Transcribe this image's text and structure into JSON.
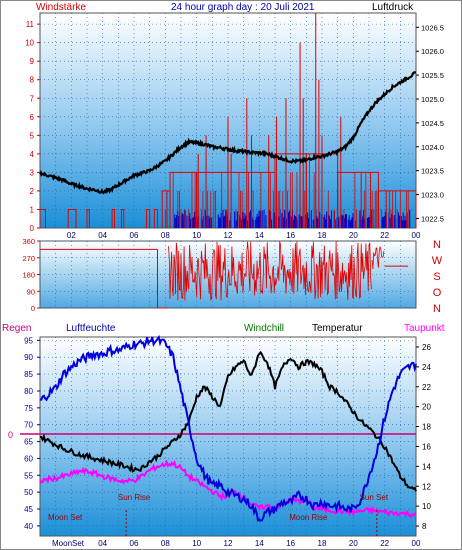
{
  "header": {
    "left": "Windstärke",
    "center": "24 hour graph day : 20 Juli 2021",
    "right": "Luftdruck"
  },
  "compass": [
    "N",
    "W",
    "S",
    "O",
    "N"
  ],
  "labels": {
    "regen": "Regen",
    "luftfeuchte": "Luftfeuchte",
    "windchill": "Windchill",
    "temperatur": "Temperatur",
    "taupunkt": "Taupunkt",
    "sun_rise": "Sun Rise",
    "sun_set": "Sun Set",
    "moon_set": "Moon Set",
    "moon_rise": "Moon Rise",
    "moon_set_bottom": "MoonSet",
    "rain_zero": "0"
  },
  "colors": {
    "wind_speed": "#e00000",
    "wind_gust": "#e00000",
    "wind_dir": "#e00000",
    "pressure": "#000000",
    "humidity": "#0000dd",
    "temperature": "#000000",
    "dewpoint": "#ff00ff",
    "rain": "#cc0077",
    "panel_top": "#ffffff",
    "panel_bottom": "#1a8fd8",
    "wind_bars_blue": "#0000cc",
    "header_left": "#cc0000",
    "header_center": "#0000aa",
    "regen_label": "#cc0077",
    "luftfeuchte_label": "#0000aa",
    "windchill_label": "#007700",
    "taupunkt_label": "#ff00ff",
    "compass_label": "#cc0000",
    "event_label": "#990000"
  },
  "chart_data": [
    {
      "type": "line",
      "name": "wind-pressure",
      "x_ticks": [
        "02",
        "04",
        "06",
        "08",
        "10",
        "12",
        "14",
        "16",
        "18",
        "20",
        "22",
        "00"
      ],
      "x_range": [
        0,
        24
      ],
      "y_left": {
        "ticks": [
          0,
          1,
          2,
          3,
          4,
          5,
          6,
          7,
          8,
          9,
          10,
          11
        ],
        "range": [
          0,
          11.6
        ],
        "label": "Windstärke"
      },
      "y_right": {
        "ticks": [
          1022.5,
          1023,
          1023.5,
          1024,
          1024.5,
          1025,
          1025.5,
          1026,
          1026.5
        ],
        "range": [
          1022.3,
          1026.8
        ],
        "label": "Luftdruck"
      },
      "pressure": {
        "x": [
          0,
          0.5,
          1,
          1.5,
          2,
          2.5,
          3,
          3.5,
          4,
          4.5,
          5,
          5.5,
          6,
          6.5,
          7,
          7.5,
          8,
          8.5,
          9,
          9.5,
          10,
          10.5,
          11,
          11.5,
          12,
          12.5,
          13,
          13.5,
          14,
          14.5,
          15,
          15.5,
          16,
          16.5,
          17,
          17.5,
          18,
          18.5,
          19,
          19.5,
          20,
          20.5,
          21,
          21.5,
          22,
          22.5,
          23,
          23.5,
          24
        ],
        "y": [
          1023.45,
          1023.4,
          1023.35,
          1023.3,
          1023.22,
          1023.18,
          1023.12,
          1023.1,
          1023.05,
          1023.1,
          1023.2,
          1023.3,
          1023.4,
          1023.45,
          1023.5,
          1023.6,
          1023.7,
          1023.85,
          1024.0,
          1024.1,
          1024.08,
          1024.05,
          1024.0,
          1023.98,
          1023.95,
          1023.92,
          1023.9,
          1023.88,
          1023.87,
          1023.85,
          1023.8,
          1023.75,
          1023.7,
          1023.7,
          1023.72,
          1023.78,
          1023.8,
          1023.85,
          1023.9,
          1024.0,
          1024.2,
          1024.5,
          1024.75,
          1024.95,
          1025.1,
          1025.25,
          1025.35,
          1025.45,
          1025.55
        ]
      },
      "wind_gust_spikes": [
        {
          "x": 8.1,
          "y": 2
        },
        {
          "x": 10.1,
          "y": 4
        },
        {
          "x": 10.6,
          "y": 5
        },
        {
          "x": 12.0,
          "y": 6
        },
        {
          "x": 12.2,
          "y": 4
        },
        {
          "x": 13.2,
          "y": 7
        },
        {
          "x": 13.5,
          "y": 5
        },
        {
          "x": 14.6,
          "y": 5
        },
        {
          "x": 15.1,
          "y": 6
        },
        {
          "x": 15.7,
          "y": 7
        },
        {
          "x": 16.6,
          "y": 10
        },
        {
          "x": 16.8,
          "y": 7
        },
        {
          "x": 17.6,
          "y": 12
        },
        {
          "x": 17.8,
          "y": 8
        },
        {
          "x": 18.0,
          "y": 5
        },
        {
          "x": 19.2,
          "y": 6
        },
        {
          "x": 20.5,
          "y": 3
        },
        {
          "x": 21.1,
          "y": 3
        },
        {
          "x": 22.1,
          "y": 2
        }
      ],
      "wind_speed_blocks": [
        {
          "x0": 0.0,
          "x1": 0.35,
          "y": 1
        },
        {
          "x0": 1.8,
          "x1": 2.3,
          "y": 1
        },
        {
          "x0": 3.0,
          "x1": 3.15,
          "y": 1
        },
        {
          "x0": 4.6,
          "x1": 4.75,
          "y": 1
        },
        {
          "x0": 5.2,
          "x1": 5.35,
          "y": 1
        },
        {
          "x0": 6.8,
          "x1": 7.0,
          "y": 1
        },
        {
          "x0": 7.3,
          "x1": 7.5,
          "y": 1
        },
        {
          "x0": 7.8,
          "x1": 8.3,
          "y": 2
        },
        {
          "x0": 8.3,
          "x1": 10.0,
          "y": 3
        },
        {
          "x0": 10.0,
          "x1": 12.0,
          "y": 3
        },
        {
          "x0": 12.0,
          "x1": 15.0,
          "y": 3
        },
        {
          "x0": 15.0,
          "x1": 17.0,
          "y": 4
        },
        {
          "x0": 17.0,
          "x1": 19.0,
          "y": 4
        },
        {
          "x0": 19.0,
          "x1": 21.6,
          "y": 3
        },
        {
          "x0": 21.6,
          "x1": 24.0,
          "y": 2
        }
      ],
      "blue_activity": [
        {
          "x0": 8.6,
          "x1": 10.0,
          "y": 1
        },
        {
          "x0": 10.0,
          "x1": 12.0,
          "y": 1
        },
        {
          "x0": 12.0,
          "x1": 14.0,
          "y": 1
        },
        {
          "x0": 14.0,
          "x1": 16.0,
          "y": 1
        },
        {
          "x0": 16.0,
          "x1": 18.0,
          "y": 1
        },
        {
          "x0": 18.0,
          "x1": 20.0,
          "y": 1
        },
        {
          "x0": 20.0,
          "x1": 21.2,
          "y": 1
        },
        {
          "x0": 21.8,
          "x1": 23.6,
          "y": 1
        }
      ]
    },
    {
      "type": "line",
      "name": "wind-direction",
      "x_range": [
        0,
        24
      ],
      "y": {
        "ticks": [
          0,
          90,
          180,
          270,
          360
        ],
        "range": [
          0,
          360
        ]
      },
      "steady_line": {
        "x0": 0,
        "x1": 7.5,
        "y": 315
      },
      "active_range": {
        "x0": 8.2,
        "x1": 21.2
      },
      "tail": {
        "x0": 21.2,
        "x1": 23.5,
        "y": 225
      }
    },
    {
      "type": "line",
      "name": "temperature-humidity",
      "x_ticks": [
        "02",
        "04",
        "06",
        "08",
        "10",
        "12",
        "14",
        "16",
        "18",
        "20",
        "22",
        "00"
      ],
      "x_range": [
        0,
        24
      ],
      "y_left": {
        "ticks": [
          40,
          45,
          50,
          55,
          60,
          65,
          70,
          75,
          80,
          85,
          90,
          95
        ],
        "range": [
          37,
          96
        ],
        "label": "Luftfeuchte"
      },
      "y_right": {
        "ticks": [
          8,
          10,
          12,
          14,
          16,
          18,
          20,
          22,
          24,
          26
        ],
        "range": [
          7,
          27
        ],
        "label": "Temperatur"
      },
      "humidity": {
        "x": [
          0,
          0.5,
          1,
          1.5,
          2,
          2.5,
          3,
          3.5,
          4,
          4.5,
          5,
          5.5,
          6,
          6.5,
          7,
          7.5,
          8,
          8.5,
          9,
          9.5,
          10,
          10.5,
          11,
          11.5,
          12,
          12.5,
          13,
          13.5,
          14,
          14.5,
          15,
          15.5,
          16,
          16.5,
          17,
          17.5,
          18,
          18.5,
          19,
          19.5,
          20,
          20.5,
          21,
          21.5,
          22,
          22.5,
          23,
          23.5,
          24
        ],
        "y": [
          77,
          79,
          81,
          85,
          87,
          89,
          90,
          91,
          91,
          92,
          92,
          93,
          94,
          94,
          95,
          95,
          94,
          90,
          80,
          70,
          60,
          55,
          52,
          52,
          50,
          49,
          48,
          46,
          42,
          44,
          45,
          47,
          47,
          49,
          48,
          46,
          47,
          46,
          46,
          45,
          45,
          48,
          55,
          62,
          72,
          80,
          85,
          87,
          88
        ]
      },
      "temperature": {
        "x": [
          0,
          0.5,
          1,
          1.5,
          2,
          2.5,
          3,
          3.5,
          4,
          4.5,
          5,
          5.5,
          6,
          6.5,
          7,
          7.5,
          8,
          8.5,
          9,
          9.5,
          10,
          10.5,
          11,
          11.5,
          12,
          12.5,
          13,
          13.5,
          14,
          14.5,
          15,
          15.5,
          16,
          16.5,
          17,
          17.5,
          18,
          18.5,
          19,
          19.5,
          20,
          20.5,
          21,
          21.5,
          22,
          22.5,
          23,
          23.5,
          24
        ],
        "y": [
          17.0,
          16.6,
          16.2,
          15.8,
          15.5,
          15.2,
          15.0,
          14.8,
          14.6,
          14.4,
          14.2,
          14.0,
          13.7,
          13.8,
          14.5,
          15.0,
          15.8,
          16.5,
          17.3,
          18.5,
          21.0,
          22.0,
          21.0,
          20.0,
          23.0,
          24.0,
          24.6,
          23.0,
          25.5,
          24.5,
          22.0,
          24.0,
          25.0,
          24.0,
          24.5,
          24.3,
          23.5,
          22.0,
          21.5,
          20.5,
          19.5,
          18.5,
          17.8,
          17.0,
          16.0,
          14.5,
          13.0,
          12.0,
          11.5
        ]
      },
      "dewpoint": {
        "x": [
          0,
          0.5,
          1,
          1.5,
          2,
          2.5,
          3,
          3.5,
          4,
          4.5,
          5,
          5.5,
          6,
          6.5,
          7,
          7.5,
          8,
          8.5,
          9,
          9.5,
          10,
          10.5,
          11,
          11.5,
          12,
          12.5,
          13,
          13.5,
          14,
          14.5,
          15,
          15.5,
          16,
          16.5,
          17,
          17.5,
          18,
          18.5,
          19,
          19.5,
          20,
          20.5,
          21,
          21.5,
          22,
          22.5,
          23,
          23.5,
          24
        ],
        "y": [
          12.5,
          12.7,
          12.8,
          13.0,
          13.2,
          13.5,
          13.5,
          13.3,
          13.0,
          12.8,
          12.6,
          12.5,
          12.6,
          13.0,
          13.6,
          14.0,
          14.2,
          14.3,
          13.8,
          13.0,
          12.5,
          12.0,
          11.5,
          11.0,
          11.0,
          11.5,
          10.8,
          10.2,
          9.8,
          10.0,
          9.9,
          10.2,
          10.6,
          10.5,
          10.6,
          9.8,
          9.7,
          9.6,
          9.5,
          9.5,
          9.4,
          9.5,
          9.6,
          9.5,
          9.4,
          9.3,
          9.3,
          9.2,
          9.2
        ]
      },
      "rain_zero_level": 0,
      "events": [
        {
          "label": "sun_rise",
          "x": 5.5
        },
        {
          "label": "sun_set",
          "x": 21.5
        },
        {
          "label": "moon_set",
          "x": 0.3
        },
        {
          "label": "moon_rise",
          "x": 17.0
        }
      ]
    }
  ]
}
